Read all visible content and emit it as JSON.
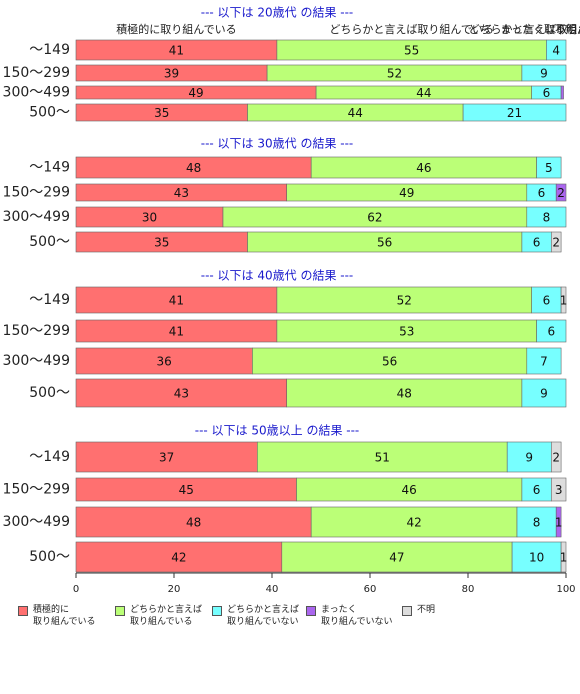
{
  "chart_data": {
    "type": "stacked-hbar",
    "xlim": [
      0,
      100
    ],
    "xticks": [
      0,
      20,
      40,
      60,
      80,
      100
    ],
    "column_headers": [
      "積極的に取り組んでいる",
      "どちらかと言えば取り組んでいる",
      "どちらかと言えば取り組んでいない",
      "まったく取り組んでいない",
      "不明"
    ],
    "series": [
      {
        "name": "積極的に\n取り組んでいる",
        "color": "#ff7070"
      },
      {
        "name": "どちらかと言えば\n取り組んでいる",
        "color": "#bbff77"
      },
      {
        "name": "どちらかと言えば\n取り組んでいない",
        "color": "#77ffff"
      },
      {
        "name": "まったく\n取り組んでいない",
        "color": "#aa66ee"
      },
      {
        "name": "不明",
        "color": "#dddddd"
      }
    ],
    "panels": [
      {
        "title": "--- 以下は 20歳代 の結果 ---",
        "categories": [
          "～149",
          "150～299",
          "300～499",
          "500～"
        ],
        "values": [
          [
            41,
            55,
            4,
            0,
            0
          ],
          [
            39,
            52,
            9,
            0,
            0
          ],
          [
            49,
            44,
            6,
            0.5,
            0
          ],
          [
            35,
            44,
            21,
            0,
            0
          ]
        ]
      },
      {
        "title": "--- 以下は 30歳代 の結果 ---",
        "categories": [
          "～149",
          "150～299",
          "300～499",
          "500～"
        ],
        "values": [
          [
            48,
            46,
            5,
            0,
            0
          ],
          [
            43,
            49,
            6,
            2,
            0
          ],
          [
            30,
            62,
            8,
            0,
            0
          ],
          [
            35,
            56,
            6,
            0,
            2
          ]
        ]
      },
      {
        "title": "--- 以下は 40歳代 の結果 ---",
        "categories": [
          "～149",
          "150～299",
          "300～499",
          "500～"
        ],
        "values": [
          [
            41,
            52,
            6,
            0,
            1
          ],
          [
            41,
            53,
            6,
            0,
            0
          ],
          [
            36,
            56,
            7,
            0,
            0
          ],
          [
            43,
            48,
            9,
            0,
            0
          ]
        ]
      },
      {
        "title": "--- 以下は 50歳以上 の結果 ---",
        "categories": [
          "～149",
          "150～299",
          "300～499",
          "500～"
        ],
        "values": [
          [
            37,
            51,
            9,
            0,
            2
          ],
          [
            45,
            46,
            6,
            0,
            3
          ],
          [
            48,
            42,
            8,
            1,
            0
          ],
          [
            42,
            47,
            10,
            0,
            1
          ]
        ]
      }
    ]
  }
}
